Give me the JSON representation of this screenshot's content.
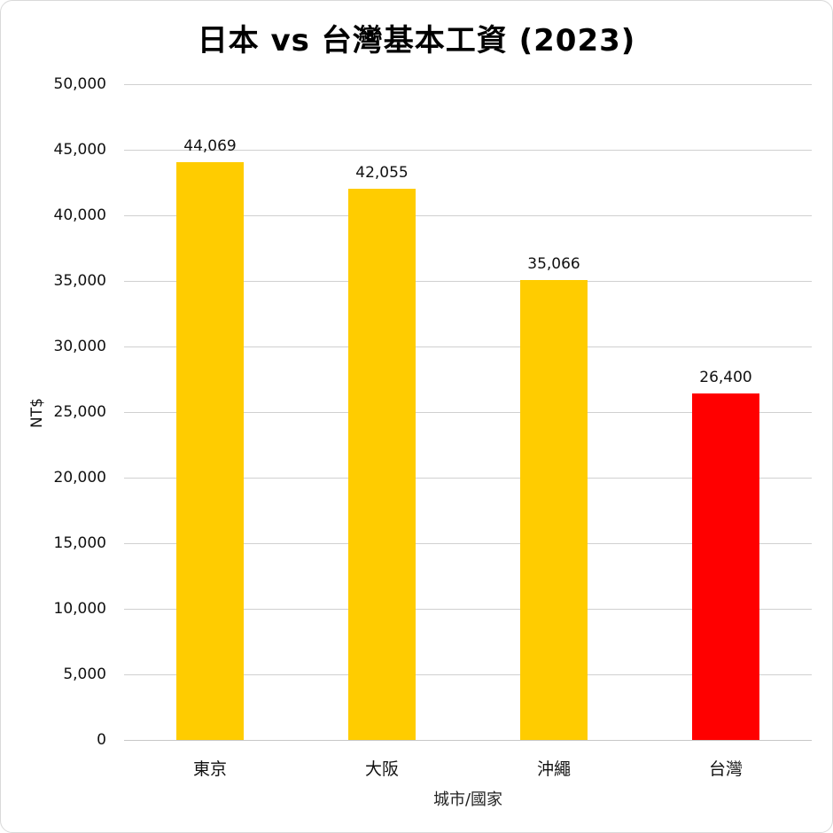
{
  "chart_data": {
    "type": "bar",
    "title": "日本 vs 台灣基本工資 (2023)",
    "xlabel": "城市/國家",
    "ylabel": "NT$",
    "categories": [
      "東京",
      "大阪",
      "沖繩",
      "台灣"
    ],
    "values": [
      44069,
      42055,
      35066,
      26400
    ],
    "value_labels": [
      "44,069",
      "42,055",
      "35,066",
      "26,400"
    ],
    "colors": [
      "#FFCC00",
      "#FFCC00",
      "#FFCC00",
      "#FF0000"
    ],
    "ylim": [
      0,
      50000
    ],
    "yticks": [
      0,
      5000,
      10000,
      15000,
      20000,
      25000,
      30000,
      35000,
      40000,
      45000,
      50000
    ],
    "ytick_labels": [
      "0",
      "5,000",
      "10,000",
      "15,000",
      "20,000",
      "25,000",
      "30,000",
      "35,000",
      "40,000",
      "45,000",
      "50,000"
    ],
    "grid": true,
    "legend": null
  }
}
